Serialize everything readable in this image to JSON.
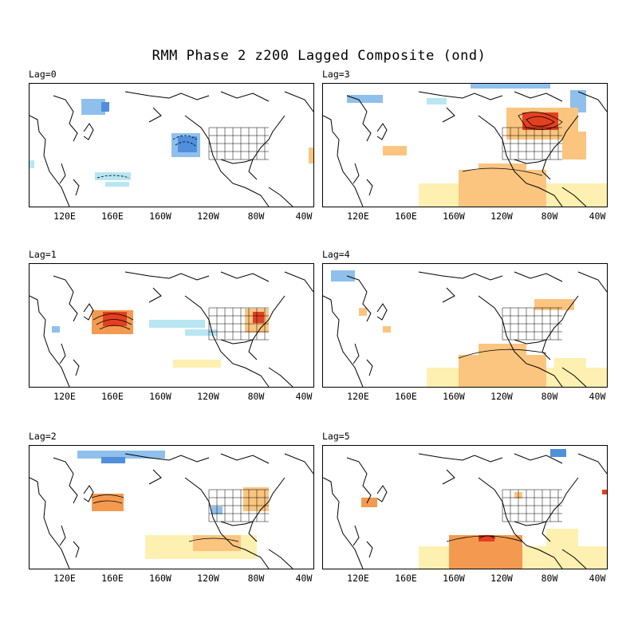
{
  "title": "RMM Phase 2 z200 Lagged Composite (ond)",
  "x_ticks": [
    "120E",
    "160E",
    "160W",
    "120W",
    "80W",
    "40W"
  ],
  "colors": {
    "pos_light": "#fdf0b0",
    "pos_mid": "#fbc580",
    "pos_orange": "#f39a50",
    "pos_strong": "#e44020",
    "neg_light": "#b8e6f2",
    "neg_mid": "#8fc0ec",
    "neg_strong": "#4f8fdc",
    "coast": "#000000"
  },
  "panels": [
    {
      "id": "lag0",
      "label": "Lag=0"
    },
    {
      "id": "lag3",
      "label": "Lag=3"
    },
    {
      "id": "lag1",
      "label": "Lag=1"
    },
    {
      "id": "lag4",
      "label": "Lag=4"
    },
    {
      "id": "lag2",
      "label": "Lag=2"
    },
    {
      "id": "lag5",
      "label": "Lag=5"
    }
  ]
}
